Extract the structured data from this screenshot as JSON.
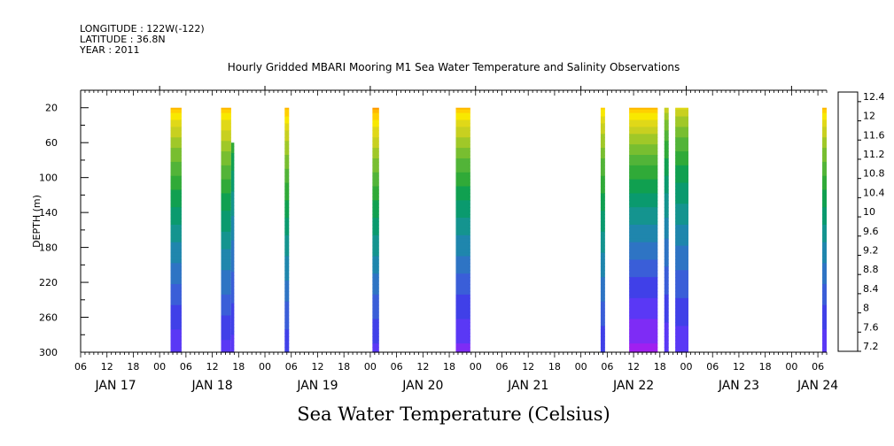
{
  "header": {
    "longitude": "LONGITUDE : 122W(-122)",
    "latitude": "LATITUDE : 36.8N",
    "year": "YEAR : 2011"
  },
  "chart_data": {
    "type": "heatmap",
    "title": "Hourly Gridded MBARI Mooring M1 Sea Water Temperature and Salinity Observations",
    "ylabel": "DEPTH (m)",
    "xlabel_bottom": "Sea Water Temperature (Celsius)",
    "y_axis": {
      "range": [
        0,
        300
      ],
      "inverted": true,
      "ticks": [
        20,
        60,
        100,
        140,
        180,
        220,
        260,
        300
      ]
    },
    "x_axis": {
      "range_hours": [
        0,
        170
      ],
      "hour_ticks": [
        {
          "h": 0,
          "label": "06"
        },
        {
          "h": 6,
          "label": "12"
        },
        {
          "h": 12,
          "label": "18"
        },
        {
          "h": 18,
          "label": "00"
        },
        {
          "h": 24,
          "label": "06"
        },
        {
          "h": 30,
          "label": "12"
        },
        {
          "h": 36,
          "label": "18"
        },
        {
          "h": 42,
          "label": "00"
        },
        {
          "h": 48,
          "label": "06"
        },
        {
          "h": 54,
          "label": "12"
        },
        {
          "h": 60,
          "label": "18"
        },
        {
          "h": 66,
          "label": "00"
        },
        {
          "h": 72,
          "label": "06"
        },
        {
          "h": 78,
          "label": "12"
        },
        {
          "h": 84,
          "label": "18"
        },
        {
          "h": 90,
          "label": "00"
        },
        {
          "h": 96,
          "label": "06"
        },
        {
          "h": 102,
          "label": "12"
        },
        {
          "h": 108,
          "label": "18"
        },
        {
          "h": 114,
          "label": "00"
        },
        {
          "h": 120,
          "label": "06"
        },
        {
          "h": 126,
          "label": "12"
        },
        {
          "h": 132,
          "label": "18"
        },
        {
          "h": 138,
          "label": "00"
        },
        {
          "h": 144,
          "label": "06"
        },
        {
          "h": 150,
          "label": "12"
        },
        {
          "h": 156,
          "label": "18"
        },
        {
          "h": 162,
          "label": "00"
        },
        {
          "h": 168,
          "label": "06"
        }
      ],
      "day_labels": [
        {
          "h": 8,
          "label": "JAN 17"
        },
        {
          "h": 30,
          "label": "JAN 18"
        },
        {
          "h": 54,
          "label": "JAN 19"
        },
        {
          "h": 78,
          "label": "JAN 20"
        },
        {
          "h": 102,
          "label": "JAN 21"
        },
        {
          "h": 126,
          "label": "JAN 22"
        },
        {
          "h": 150,
          "label": "JAN 23"
        },
        {
          "h": 168,
          "label": "JAN 24"
        }
      ]
    },
    "colorbar": {
      "levels": [
        7.2,
        7.4,
        7.6,
        7.8,
        8.0,
        8.2,
        8.4,
        8.6,
        8.8,
        9.0,
        9.2,
        9.4,
        9.6,
        9.8,
        10.0,
        10.2,
        10.4,
        10.6,
        10.8,
        11.0,
        11.2,
        11.4,
        11.6,
        11.8,
        12.0,
        12.2,
        12.4,
        12.6
      ],
      "colors": [
        "#cc00ff",
        "#a020f0",
        "#7e2cf5",
        "#5a38f5",
        "#4040e8",
        "#3a5ed8",
        "#2e74c4",
        "#1f86ad",
        "#14948f",
        "#0a9a6e",
        "#10a050",
        "#30aa38",
        "#52b438",
        "#78be30",
        "#a0c828",
        "#c8d020",
        "#e0d818",
        "#f8e800",
        "#ffd000",
        "#ffb800",
        "#ff9a00",
        "#ff7800",
        "#ff5500",
        "#f23a00",
        "#e01e00",
        "#c40c00",
        "#a00000"
      ],
      "labels": [
        "12.4",
        "12",
        "11.6",
        "11.2",
        "10.8",
        "10.4",
        "10",
        "9.6",
        "9.2",
        "8.8",
        "8.4",
        "8",
        "7.6",
        "7.2"
      ]
    },
    "observations": [
      {
        "t0": 20.5,
        "t1": 23.0,
        "surface": 11.4,
        "bottom": 7.8,
        "maxdepth": 300
      },
      {
        "t0": 32.0,
        "t1": 34.3,
        "surface": 11.4,
        "bottom": 7.9,
        "maxdepth": 300
      },
      {
        "t0": 34.3,
        "t1": 35.0,
        "surface": 10.4,
        "bottom": 7.9,
        "maxdepth": 300,
        "topdepth": 60
      },
      {
        "t0": 46.5,
        "t1": 47.5,
        "surface": 11.4,
        "bottom": 8.0,
        "maxdepth": 300
      },
      {
        "t0": 66.5,
        "t1": 68.0,
        "surface": 11.6,
        "bottom": 7.9,
        "maxdepth": 300
      },
      {
        "t0": 85.5,
        "t1": 88.8,
        "surface": 11.4,
        "bottom": 7.7,
        "maxdepth": 300
      },
      {
        "t0": 118.5,
        "t1": 119.5,
        "surface": 11.2,
        "bottom": 8.0,
        "maxdepth": 300
      },
      {
        "t0": 125.0,
        "t1": 131.5,
        "surface": 11.4,
        "bottom": 7.5,
        "maxdepth": 300
      },
      {
        "t0": 133.0,
        "t1": 134.0,
        "surface": 10.6,
        "bottom": 7.8,
        "maxdepth": 300
      },
      {
        "t0": 135.5,
        "t1": 138.5,
        "surface": 10.8,
        "bottom": 7.8,
        "maxdepth": 300
      },
      {
        "t0": 169.0,
        "t1": 170.0,
        "surface": 11.4,
        "bottom": 7.8,
        "maxdepth": 300
      }
    ]
  }
}
